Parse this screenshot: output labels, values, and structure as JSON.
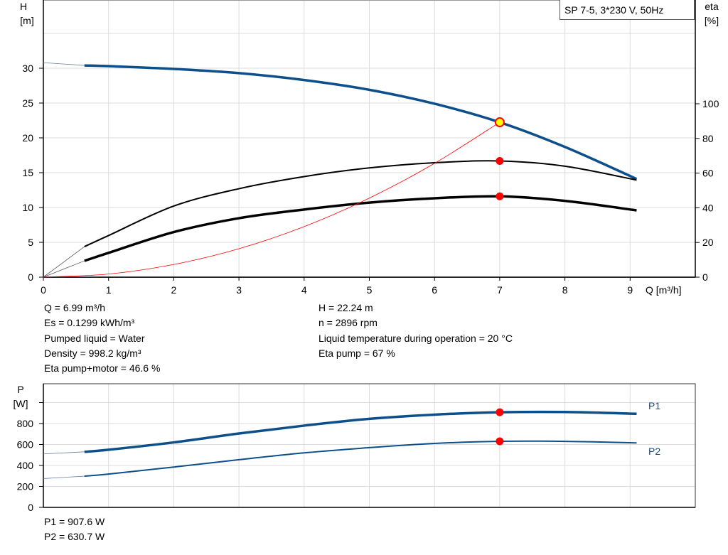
{
  "chart_data": [
    {
      "type": "line",
      "legend_box": "SP 7-5, 3*230 V, 50Hz",
      "xlabel": "Q [m³/h]",
      "ylabel_left": "H",
      "ylabel_left_unit": "[m]",
      "ylabel_right": "eta",
      "ylabel_right_unit": "[%]",
      "xlim": [
        0,
        10
      ],
      "ylim_left": [
        0,
        40
      ],
      "ylim_right": [
        0,
        160
      ],
      "xticks": [
        "0",
        "1",
        "2",
        "3",
        "4",
        "5",
        "6",
        "7",
        "8",
        "9"
      ],
      "yticks_left": [
        "0",
        "5",
        "10",
        "15",
        "20",
        "25",
        "30"
      ],
      "yticks_right": [
        "0",
        "20",
        "40",
        "60",
        "80",
        "100"
      ],
      "grid": true,
      "series": [
        {
          "id": "H",
          "axis": "left",
          "color": "#0d4f8b",
          "x": [
            0.63,
            1,
            2,
            3,
            4,
            5,
            6,
            7,
            8,
            9.1
          ],
          "y": [
            30.4,
            30.3,
            29.9,
            29.3,
            28.3,
            26.9,
            24.9,
            22.24,
            18.7,
            14.1
          ],
          "extension": {
            "x": [
              0,
              0.63
            ],
            "y": [
              30.8,
              30.4
            ]
          }
        },
        {
          "id": "eta_pump",
          "axis": "right",
          "color": "#000000",
          "x": [
            0.63,
            1,
            2,
            3,
            4,
            5,
            6,
            7,
            8,
            9.1
          ],
          "y": [
            17.6,
            24,
            41,
            51,
            58,
            63,
            66,
            67,
            64,
            56
          ],
          "extension": {
            "x": [
              0,
              0.63
            ],
            "y": [
              0,
              17.6
            ]
          }
        },
        {
          "id": "eta_total",
          "axis": "right",
          "color": "#000000",
          "x": [
            0.63,
            1,
            2,
            3,
            4,
            5,
            6,
            7,
            8,
            9.1
          ],
          "y": [
            9.4,
            14,
            26,
            34,
            39,
            43,
            45.5,
            46.6,
            44,
            38.5
          ],
          "extension": {
            "x": [
              0,
              0.63
            ],
            "y": [
              0,
              9.4
            ]
          }
        },
        {
          "id": "system_curve",
          "axis": "left",
          "color": "#ff0000",
          "x": [
            0,
            1,
            2,
            3,
            4,
            5,
            6,
            7
          ],
          "y": [
            0,
            0.45,
            1.82,
            4.08,
            7.26,
            11.35,
            16.34,
            22.24
          ]
        }
      ],
      "duty_points": [
        {
          "axis": "left",
          "x": 7,
          "y": 22.24,
          "fill": "#ffff00",
          "stroke": "#ff0000"
        },
        {
          "axis": "right",
          "x": 7,
          "y": 67,
          "fill": "#ff0000"
        },
        {
          "axis": "right",
          "x": 7,
          "y": 46.6,
          "fill": "#ff0000"
        }
      ]
    },
    {
      "type": "line",
      "ylabel": "P",
      "ylabel_unit": "[W]",
      "xlim": [
        0,
        10
      ],
      "ylim": [
        0,
        1180
      ],
      "yticks": [
        "0",
        "200",
        "400",
        "600",
        "800",
        ""
      ],
      "grid": true,
      "series": [
        {
          "name": "P1",
          "color": "#0d4f8b",
          "x": [
            0.63,
            1,
            2,
            3,
            4,
            5,
            6,
            7,
            8,
            9.1
          ],
          "y": [
            530,
            550,
            620,
            705,
            780,
            845,
            885,
            907.6,
            910,
            893
          ],
          "extension": {
            "x": [
              0,
              0.63
            ],
            "y": [
              510,
              530
            ]
          }
        },
        {
          "name": "P2",
          "color": "#0d4f8b",
          "x": [
            0.63,
            1,
            2,
            3,
            4,
            5,
            6,
            7,
            8,
            9.1
          ],
          "y": [
            298,
            318,
            385,
            455,
            520,
            570,
            610,
            630.7,
            630,
            615
          ],
          "extension": {
            "x": [
              0,
              0.63
            ],
            "y": [
              275,
              298
            ]
          }
        }
      ],
      "duty_points": [
        {
          "x": 7,
          "y": 907.6,
          "fill": "#ff0000"
        },
        {
          "x": 7,
          "y": 630.7,
          "fill": "#ff0000"
        }
      ]
    }
  ],
  "info": {
    "left": [
      "Q = 6.99 m³/h",
      "Es = 0.1299 kWh/m³",
      "Pumped liquid = Water",
      "Density = 998.2 kg/m³",
      "Eta pump+motor = 46.6 %"
    ],
    "right": [
      "H = 22.24 m",
      "n = 2896 rpm",
      "Liquid temperature during operation = 20 °C",
      "Eta pump = 67 %"
    ],
    "power": [
      "P1 = 907.6 W",
      "P2 = 630.7 W"
    ]
  }
}
